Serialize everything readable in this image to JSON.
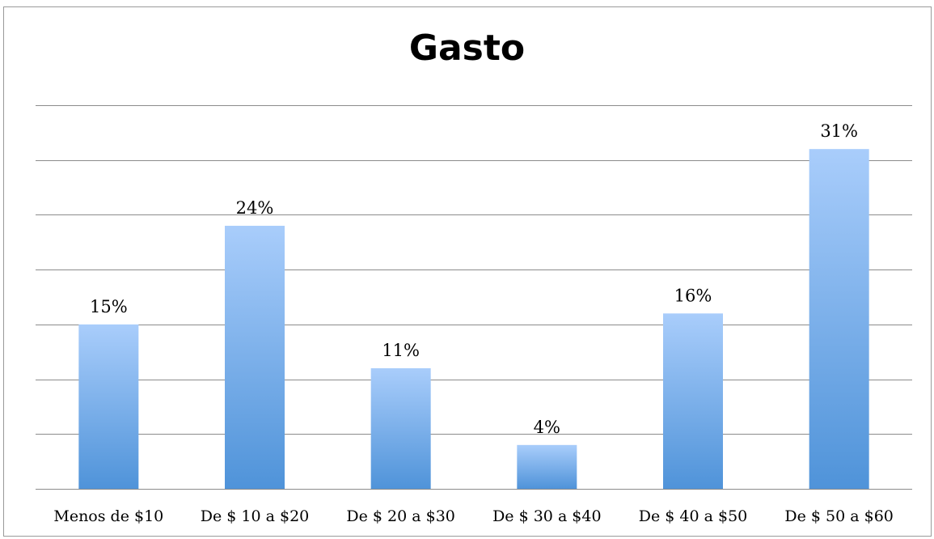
{
  "chart_data": {
    "type": "bar",
    "title": "Gasto",
    "categories": [
      "Menos de $10",
      "De $ 10 a $20",
      "De $ 20 a $30",
      "De $ 30 a $40",
      "De $ 40 a $50",
      "De $ 50 a $60"
    ],
    "values": [
      15,
      24,
      11,
      4,
      16,
      31
    ],
    "value_labels": [
      "15%",
      "24%",
      "11%",
      "4%",
      "16%",
      "31%"
    ],
    "xlabel": "",
    "ylabel": "",
    "ylim": [
      0,
      35
    ],
    "y_gridline_step": 5,
    "grid": true,
    "legend": "none",
    "bar_color_top": "#a9cdfb",
    "bar_color_bottom": "#4f93d9"
  }
}
